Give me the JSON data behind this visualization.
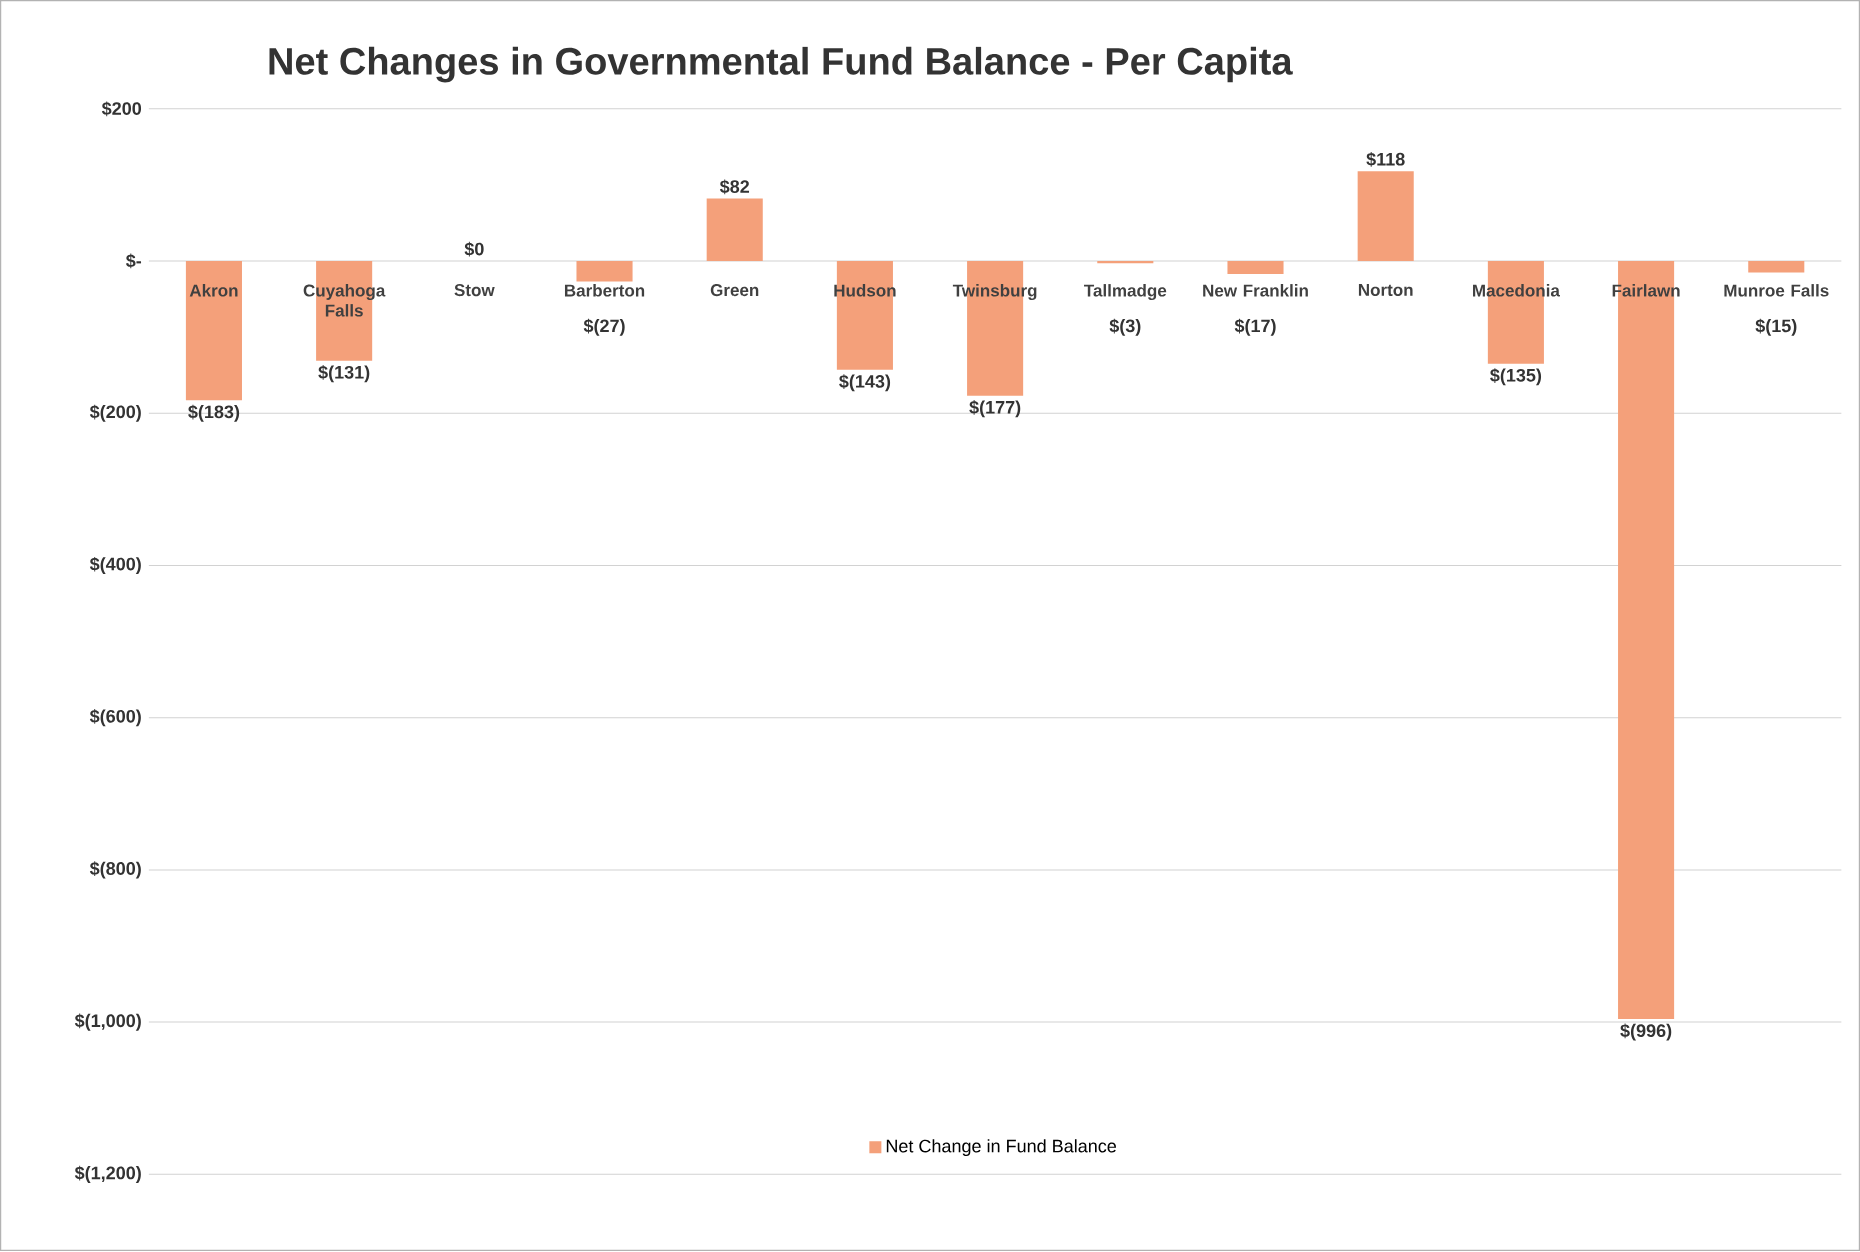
{
  "chart_data": {
    "type": "bar",
    "title": "Net Changes in Governmental Fund Balance - Per Capita",
    "categories": [
      "Akron",
      "Cuyahoga Falls",
      "Stow",
      "Barberton",
      "Green",
      "Hudson",
      "Twinsburg",
      "Tallmadge",
      "New Franklin",
      "Norton",
      "Macedonia",
      "Fairlawn",
      "Munroe Falls"
    ],
    "series": [
      {
        "name": "Net Change in Fund Balance",
        "color": "#f4a07a",
        "values": [
          -183,
          -131,
          0,
          -27,
          82,
          -143,
          -177,
          -3,
          -17,
          118,
          -135,
          -996,
          -15
        ],
        "value_labels": [
          "$(183)",
          "$(131)",
          "$0",
          "$(27)",
          "$82",
          "$(143)",
          "$(177)",
          "$(3)",
          "$(17)",
          "$118",
          "$(135)",
          "$(996)",
          "$(15)"
        ]
      }
    ],
    "ylim": [
      -1200,
      200
    ],
    "yticks": [
      {
        "value": 200,
        "label": "$200"
      },
      {
        "value": 0,
        "label": "$-"
      },
      {
        "value": -200,
        "label": "$(200)"
      },
      {
        "value": -400,
        "label": "$(400)"
      },
      {
        "value": -600,
        "label": "$(600)"
      },
      {
        "value": -800,
        "label": "$(800)"
      },
      {
        "value": -1000,
        "label": "$(1,000)"
      },
      {
        "value": -1200,
        "label": "$(1,200)"
      }
    ],
    "grid": "y",
    "legend": "bottom"
  }
}
